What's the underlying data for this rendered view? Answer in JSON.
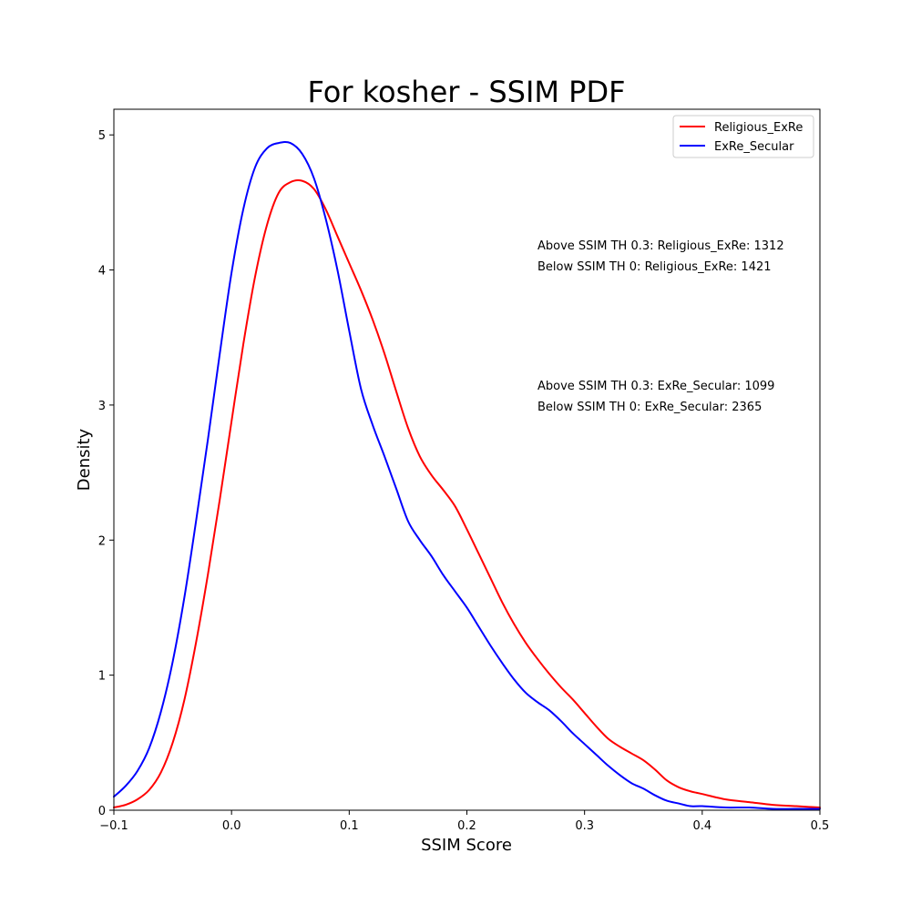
{
  "chart_data": {
    "type": "line",
    "title": "For kosher - SSIM PDF",
    "xlabel": "SSIM Score",
    "ylabel": "Density",
    "xlim": [
      -0.1,
      0.5
    ],
    "ylim": [
      0,
      5.19
    ],
    "xticks": [
      -0.1,
      0.0,
      0.1,
      0.2,
      0.3,
      0.4,
      0.5
    ],
    "xtick_labels": [
      "−0.1",
      "0.0",
      "0.1",
      "0.2",
      "0.3",
      "0.4",
      "0.5"
    ],
    "yticks": [
      0,
      1,
      2,
      3,
      4,
      5
    ],
    "ytick_labels": [
      "0",
      "1",
      "2",
      "3",
      "4",
      "5"
    ],
    "grid": false,
    "legend_position": "top-right",
    "series": [
      {
        "name": "Religious_ExRe",
        "color": "#ff0000",
        "x": [
          -0.1,
          -0.09,
          -0.08,
          -0.07,
          -0.06,
          -0.05,
          -0.04,
          -0.03,
          -0.02,
          -0.01,
          0.0,
          0.01,
          0.02,
          0.03,
          0.04,
          0.05,
          0.06,
          0.07,
          0.08,
          0.09,
          0.1,
          0.11,
          0.12,
          0.13,
          0.14,
          0.15,
          0.16,
          0.17,
          0.18,
          0.19,
          0.2,
          0.21,
          0.22,
          0.23,
          0.24,
          0.25,
          0.26,
          0.27,
          0.28,
          0.29,
          0.3,
          0.31,
          0.32,
          0.33,
          0.34,
          0.35,
          0.36,
          0.37,
          0.38,
          0.39,
          0.4,
          0.42,
          0.44,
          0.46,
          0.48,
          0.5
        ],
        "y": [
          0.02,
          0.04,
          0.08,
          0.15,
          0.28,
          0.5,
          0.82,
          1.25,
          1.75,
          2.3,
          2.88,
          3.45,
          3.95,
          4.33,
          4.57,
          4.65,
          4.66,
          4.6,
          4.45,
          4.25,
          4.05,
          3.85,
          3.63,
          3.38,
          3.1,
          2.83,
          2.62,
          2.48,
          2.37,
          2.25,
          2.08,
          1.9,
          1.72,
          1.54,
          1.38,
          1.24,
          1.12,
          1.01,
          0.91,
          0.82,
          0.72,
          0.62,
          0.53,
          0.47,
          0.42,
          0.37,
          0.3,
          0.22,
          0.17,
          0.14,
          0.12,
          0.08,
          0.06,
          0.04,
          0.03,
          0.02
        ]
      },
      {
        "name": "ExRe_Secular",
        "color": "#0000ff",
        "x": [
          -0.1,
          -0.09,
          -0.08,
          -0.07,
          -0.06,
          -0.05,
          -0.04,
          -0.03,
          -0.02,
          -0.01,
          0.0,
          0.01,
          0.02,
          0.03,
          0.04,
          0.05,
          0.06,
          0.07,
          0.08,
          0.09,
          0.1,
          0.11,
          0.12,
          0.13,
          0.14,
          0.15,
          0.16,
          0.17,
          0.18,
          0.19,
          0.2,
          0.21,
          0.22,
          0.23,
          0.24,
          0.25,
          0.26,
          0.27,
          0.28,
          0.29,
          0.3,
          0.31,
          0.32,
          0.33,
          0.34,
          0.35,
          0.36,
          0.37,
          0.38,
          0.39,
          0.4,
          0.42,
          0.44,
          0.46,
          0.48,
          0.5
        ],
        "y": [
          0.1,
          0.18,
          0.29,
          0.46,
          0.73,
          1.1,
          1.58,
          2.15,
          2.75,
          3.38,
          3.98,
          4.45,
          4.76,
          4.9,
          4.94,
          4.94,
          4.86,
          4.68,
          4.38,
          4.0,
          3.55,
          3.12,
          2.85,
          2.62,
          2.38,
          2.14,
          2.0,
          1.88,
          1.74,
          1.62,
          1.5,
          1.36,
          1.22,
          1.09,
          0.97,
          0.87,
          0.8,
          0.74,
          0.66,
          0.57,
          0.49,
          0.41,
          0.33,
          0.26,
          0.2,
          0.16,
          0.11,
          0.07,
          0.05,
          0.03,
          0.03,
          0.02,
          0.02,
          0.01,
          0.01,
          0.01
        ]
      }
    ],
    "annotations": [
      "Above SSIM TH 0.3: Religious_ExRe: 1312",
      "Below SSIM TH 0: Religious_ExRe: 1421",
      "Above SSIM TH 0.3: ExRe_Secular: 1099",
      "Below SSIM TH 0: ExRe_Secular: 2365"
    ]
  }
}
